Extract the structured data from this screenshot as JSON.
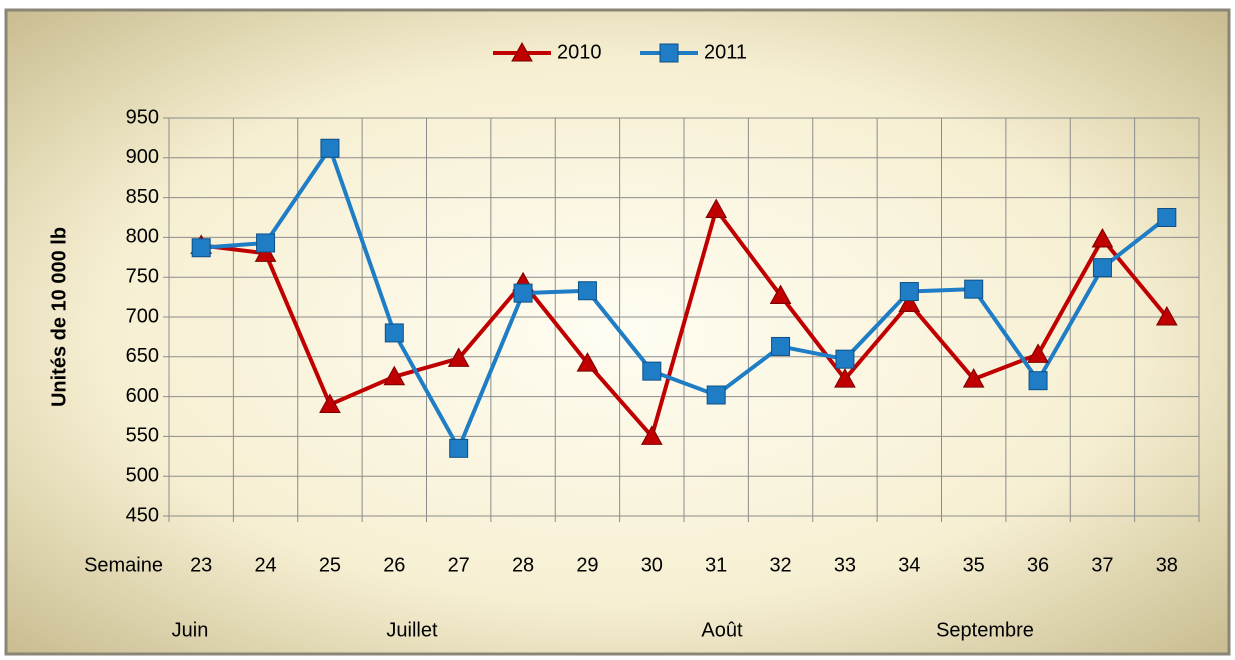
{
  "chart_data": {
    "type": "line",
    "y_label": "Unités de 10 000 lb",
    "x_label": "Semaine",
    "categories": [
      "23",
      "24",
      "25",
      "26",
      "27",
      "28",
      "29",
      "30",
      "31",
      "32",
      "33",
      "34",
      "35",
      "36",
      "37",
      "38"
    ],
    "month_labels": [
      "Juin",
      "Juillet",
      "Août",
      "Septembre"
    ],
    "series": [
      {
        "name": "2010",
        "color": "#c00000",
        "marker": "triangle",
        "values": [
          790,
          780,
          590,
          625,
          648,
          743,
          642,
          550,
          835,
          727,
          622,
          717,
          622,
          653,
          798,
          700
        ]
      },
      {
        "name": "2011",
        "color": "#1f7dc6",
        "marker": "square",
        "values": [
          787,
          793,
          912,
          680,
          535,
          730,
          733,
          632,
          602,
          663,
          647,
          732,
          735,
          620,
          762,
          825
        ]
      }
    ],
    "ylim": [
      450,
      950
    ],
    "yticks": [
      450,
      500,
      550,
      600,
      650,
      700,
      750,
      800,
      850,
      900,
      950
    ],
    "grid": true,
    "legend": "top"
  }
}
